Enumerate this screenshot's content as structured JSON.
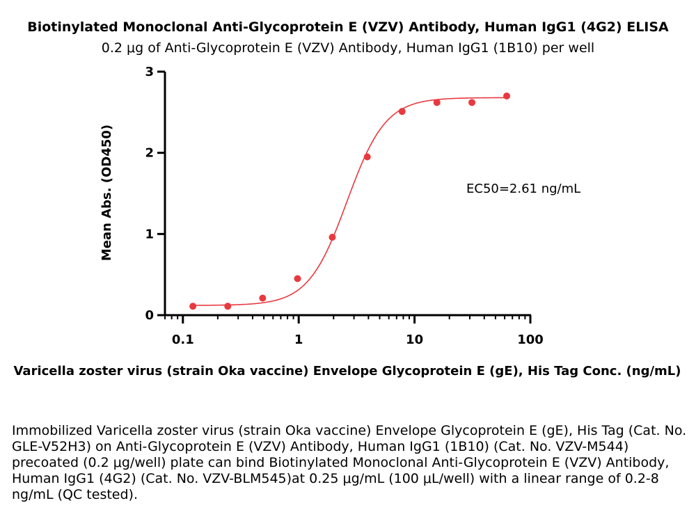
{
  "chart_data": {
    "type": "scatter",
    "title": "Biotinylated Monoclonal Anti-Glycoprotein E (VZV) Antibody, Human IgG1 (4G2) ELISA",
    "subtitle": "0.2 μg of Anti-Glycoprotein E (VZV) Antibody, Human IgG1 (1B10) per well",
    "xlabel": "Varicella zoster virus (strain Oka vaccine) Envelope Glycoprotein E (gE), His Tag Conc. (ng/mL)",
    "ylabel": "Mean Abs. (OD450)",
    "x_scale": "log",
    "xlim": [
      0.07,
      100
    ],
    "ylim": [
      0,
      3
    ],
    "x_ticks": [
      0.1,
      1,
      10,
      100
    ],
    "x_tick_labels": [
      "0.1",
      "1",
      "10",
      "100"
    ],
    "y_ticks": [
      0,
      1,
      2,
      3
    ],
    "y_tick_labels": [
      "0",
      "1",
      "2",
      "3"
    ],
    "grid": false,
    "color": "#e8393f",
    "points": {
      "x": [
        0.122,
        0.244,
        0.488,
        0.977,
        1.95,
        3.91,
        7.81,
        15.6,
        31.3,
        62.5
      ],
      "y": [
        0.11,
        0.11,
        0.21,
        0.45,
        0.96,
        1.95,
        2.51,
        2.62,
        2.62,
        2.7
      ]
    },
    "fit": {
      "model": "4PL",
      "bottom": 0.12,
      "top": 2.68,
      "ec50": 2.61,
      "hill": 2.6,
      "x_range": [
        0.122,
        62.5
      ]
    },
    "annotation": "EC50=2.61 ng/mL"
  },
  "caption": "Immobilized Varicella zoster virus (strain Oka vaccine) Envelope Glycoprotein E (gE), His Tag (Cat. No. GLE-V52H3) on Anti-Glycoprotein E (VZV) Antibody, Human IgG1 (1B10) (Cat. No. VZV-M544) precoated (0.2 μg/well) plate can bind Biotinylated Monoclonal Anti-Glycoprotein E (VZV) Antibody, Human IgG1 (4G2) (Cat. No. VZV-BLM545)at 0.25 μg/mL (100 μL/well) with a linear range of 0.2-8 ng/mL (QC tested)."
}
